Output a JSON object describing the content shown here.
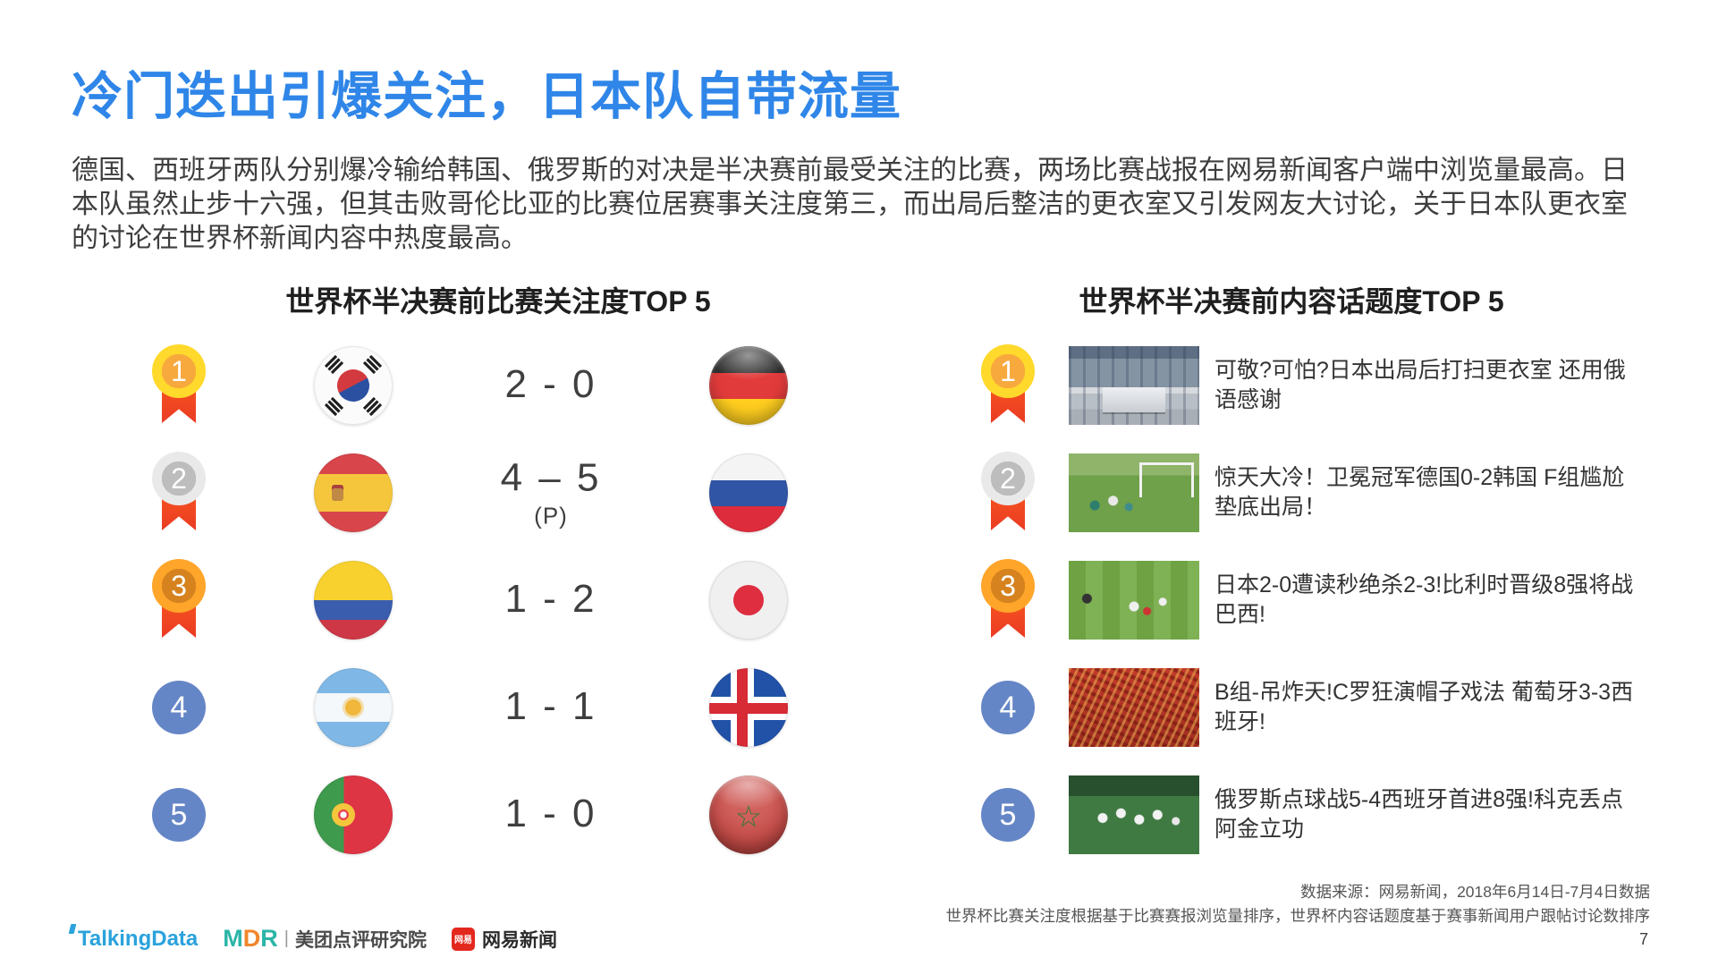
{
  "slide": {
    "title": "冷门迭出引爆关注，日本队自带流量",
    "paragraph": "德国、西班牙两队分别爆冷输给韩国、俄罗斯的对决是半决赛前最受关注的比赛，两场比赛战报在网易新闻客户端中浏览量最高。日本队虽然止步十六强，但其击败哥伦比亚的比赛位居赛事关注度第三，而出局后整洁的更衣室又引发网友大讨论，关于日本队更衣室的讨论在世界杯新闻内容中热度最高。",
    "page_number": "7"
  },
  "colors": {
    "title_blue": "#2F86E8",
    "medal_gold": "#FFD92B",
    "medal_silver": "#E9E9E9",
    "medal_bronze": "#FFA52A",
    "medal_ribbon_red": "#EE4723",
    "rank_plain_blue": "#6586C6"
  },
  "icons": {
    "morocco_star": "☆"
  },
  "left_ranking": {
    "title": "世界杯半决赛前比赛关注度TOP 5",
    "rows": [
      {
        "rank": "1",
        "home_team": "South Korea",
        "score": "2 - 0",
        "score_note": "",
        "away_team": "Germany"
      },
      {
        "rank": "2",
        "home_team": "Spain",
        "score": "4 – 5",
        "score_note": "(P)",
        "away_team": "Russia"
      },
      {
        "rank": "3",
        "home_team": "Colombia",
        "score": "1 - 2",
        "score_note": "",
        "away_team": "Japan"
      },
      {
        "rank": "4",
        "home_team": "Argentina",
        "score": "1 - 1",
        "score_note": "",
        "away_team": "Iceland"
      },
      {
        "rank": "5",
        "home_team": "Portugal",
        "score": "1 - 0",
        "score_note": "",
        "away_team": "Morocco"
      }
    ]
  },
  "right_ranking": {
    "title": "世界杯半决赛前内容话题度TOP 5",
    "rows": [
      {
        "rank": "1",
        "thumbnail": "japan-locker-room-photo",
        "headline": "可敬?可怕?日本出局后打扫更衣室 还用俄语感谢"
      },
      {
        "rank": "2",
        "thumbnail": "korea-germany-match-photo",
        "headline": "惊天大冷！卫冕冠军德国0-2韩国 F组尴尬垫底出局！"
      },
      {
        "rank": "3",
        "thumbnail": "japan-belgium-match-photo",
        "headline": "日本2-0遭读秒绝杀2-3!比利时晋级8强将战巴西!"
      },
      {
        "rank": "4",
        "thumbnail": "portugal-fans-crowd-photo",
        "headline": "B组-吊炸天!C罗狂演帽子戏法 葡萄牙3-3西班牙!"
      },
      {
        "rank": "5",
        "thumbnail": "russia-celebration-photo",
        "headline": "俄罗斯点球战5-4西班牙首进8强!科克丢点阿金立功"
      }
    ]
  },
  "footer": {
    "source_line1": "数据来源：网易新闻，2018年6月14日-7月4日数据",
    "source_line2": "世界杯比赛关注度根据基于比赛赛报浏览量排序，世界杯内容话题度基于赛事新闻用户跟帖讨论数排序",
    "logos": {
      "talkingdata": "TalkingData",
      "mdr_m": "M",
      "mdr_d": "D",
      "mdr_r": "R",
      "divider": "|",
      "meituan_label": "美团点评研究院",
      "netease_badge": "网易",
      "netease_label": "网易新闻"
    }
  }
}
